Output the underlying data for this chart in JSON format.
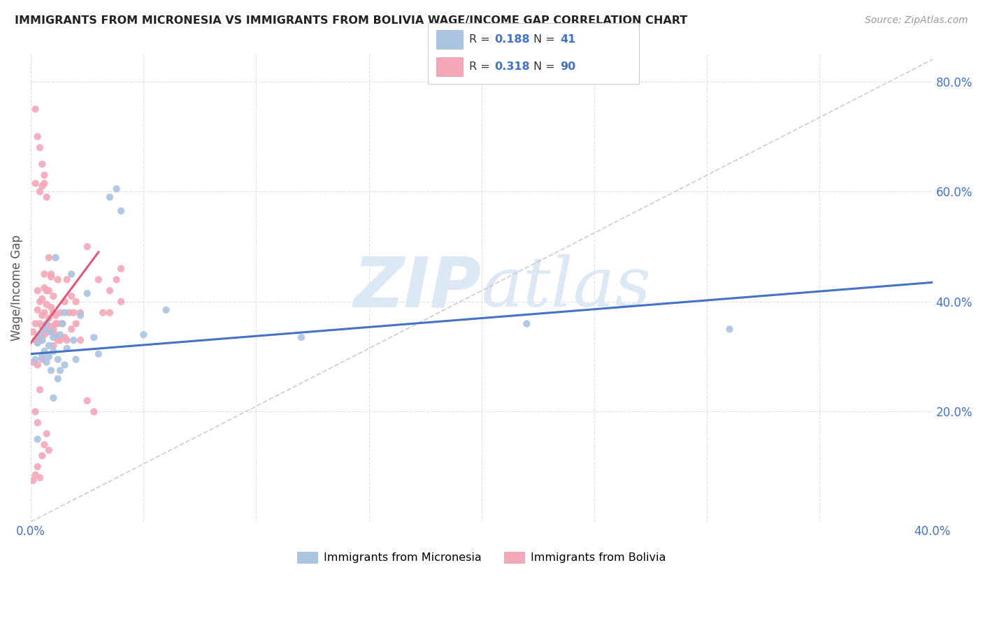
{
  "title": "IMMIGRANTS FROM MICRONESIA VS IMMIGRANTS FROM BOLIVIA WAGE/INCOME GAP CORRELATION CHART",
  "source": "Source: ZipAtlas.com",
  "ylabel_label": "Wage/Income Gap",
  "xmin": 0.0,
  "xmax": 0.4,
  "ymin": 0.0,
  "ymax": 0.85,
  "xtick_positions": [
    0.0,
    0.05,
    0.1,
    0.15,
    0.2,
    0.25,
    0.3,
    0.35,
    0.4
  ],
  "xtick_labels_shown": {
    "0.0": "0.0%",
    "0.40": "40.0%"
  },
  "ytick_positions": [
    0.2,
    0.4,
    0.6,
    0.8
  ],
  "ytick_labels": [
    "20.0%",
    "40.0%",
    "60.0%",
    "80.0%"
  ],
  "legend1_label": "Immigrants from Micronesia",
  "legend2_label": "Immigrants from Bolivia",
  "R_micro": 0.188,
  "N_micro": 41,
  "R_bolivia": 0.318,
  "N_bolivia": 90,
  "color_micro": "#aac4e2",
  "color_bolivia": "#f4a8b8",
  "color_micro_line": "#4472c4",
  "color_bolivia_line": "#e05878",
  "color_diag": "#c8c8c8",
  "background_color": "#ffffff",
  "grid_color": "#e0e0e0",
  "watermark_color": "#dce8f5",
  "micro_x": [
    0.002,
    0.003,
    0.004,
    0.005,
    0.005,
    0.006,
    0.006,
    0.007,
    0.007,
    0.008,
    0.008,
    0.009,
    0.009,
    0.01,
    0.01,
    0.01,
    0.011,
    0.012,
    0.012,
    0.013,
    0.013,
    0.014,
    0.015,
    0.015,
    0.016,
    0.018,
    0.019,
    0.02,
    0.022,
    0.025,
    0.028,
    0.03,
    0.035,
    0.038,
    0.04,
    0.05,
    0.06,
    0.12,
    0.22,
    0.31,
    0.003
  ],
  "micro_y": [
    0.295,
    0.325,
    0.34,
    0.3,
    0.33,
    0.31,
    0.35,
    0.29,
    0.36,
    0.3,
    0.32,
    0.345,
    0.275,
    0.335,
    0.31,
    0.225,
    0.48,
    0.26,
    0.295,
    0.34,
    0.275,
    0.36,
    0.285,
    0.38,
    0.315,
    0.45,
    0.33,
    0.295,
    0.375,
    0.415,
    0.335,
    0.305,
    0.59,
    0.605,
    0.565,
    0.34,
    0.385,
    0.335,
    0.36,
    0.35,
    0.15
  ],
  "bolivia_x": [
    0.001,
    0.001,
    0.002,
    0.002,
    0.002,
    0.003,
    0.003,
    0.003,
    0.003,
    0.004,
    0.004,
    0.004,
    0.005,
    0.005,
    0.005,
    0.005,
    0.005,
    0.006,
    0.006,
    0.006,
    0.006,
    0.007,
    0.007,
    0.007,
    0.008,
    0.008,
    0.008,
    0.009,
    0.009,
    0.009,
    0.01,
    0.01,
    0.01,
    0.01,
    0.011,
    0.011,
    0.012,
    0.012,
    0.012,
    0.013,
    0.013,
    0.014,
    0.015,
    0.015,
    0.016,
    0.016,
    0.017,
    0.018,
    0.018,
    0.019,
    0.02,
    0.02,
    0.022,
    0.022,
    0.025,
    0.025,
    0.028,
    0.03,
    0.032,
    0.035,
    0.035,
    0.038,
    0.04,
    0.04,
    0.002,
    0.003,
    0.004,
    0.005,
    0.006,
    0.007,
    0.001,
    0.002,
    0.003,
    0.004,
    0.005,
    0.006,
    0.007,
    0.008,
    0.003,
    0.004,
    0.002,
    0.003,
    0.004,
    0.005,
    0.006,
    0.007,
    0.008,
    0.009,
    0.01,
    0.011
  ],
  "bolivia_y": [
    0.345,
    0.29,
    0.33,
    0.615,
    0.36,
    0.335,
    0.285,
    0.325,
    0.385,
    0.33,
    0.6,
    0.36,
    0.355,
    0.295,
    0.33,
    0.375,
    0.405,
    0.34,
    0.38,
    0.425,
    0.615,
    0.35,
    0.395,
    0.36,
    0.345,
    0.37,
    0.42,
    0.355,
    0.39,
    0.445,
    0.32,
    0.35,
    0.38,
    0.41,
    0.34,
    0.375,
    0.33,
    0.36,
    0.44,
    0.33,
    0.38,
    0.36,
    0.335,
    0.4,
    0.44,
    0.33,
    0.38,
    0.35,
    0.41,
    0.38,
    0.36,
    0.4,
    0.33,
    0.38,
    0.5,
    0.22,
    0.2,
    0.44,
    0.38,
    0.42,
    0.38,
    0.44,
    0.4,
    0.46,
    0.2,
    0.18,
    0.24,
    0.61,
    0.63,
    0.59,
    0.075,
    0.085,
    0.1,
    0.08,
    0.12,
    0.14,
    0.16,
    0.13,
    0.42,
    0.4,
    0.75,
    0.7,
    0.68,
    0.65,
    0.45,
    0.42,
    0.48,
    0.45,
    0.38,
    0.36
  ]
}
